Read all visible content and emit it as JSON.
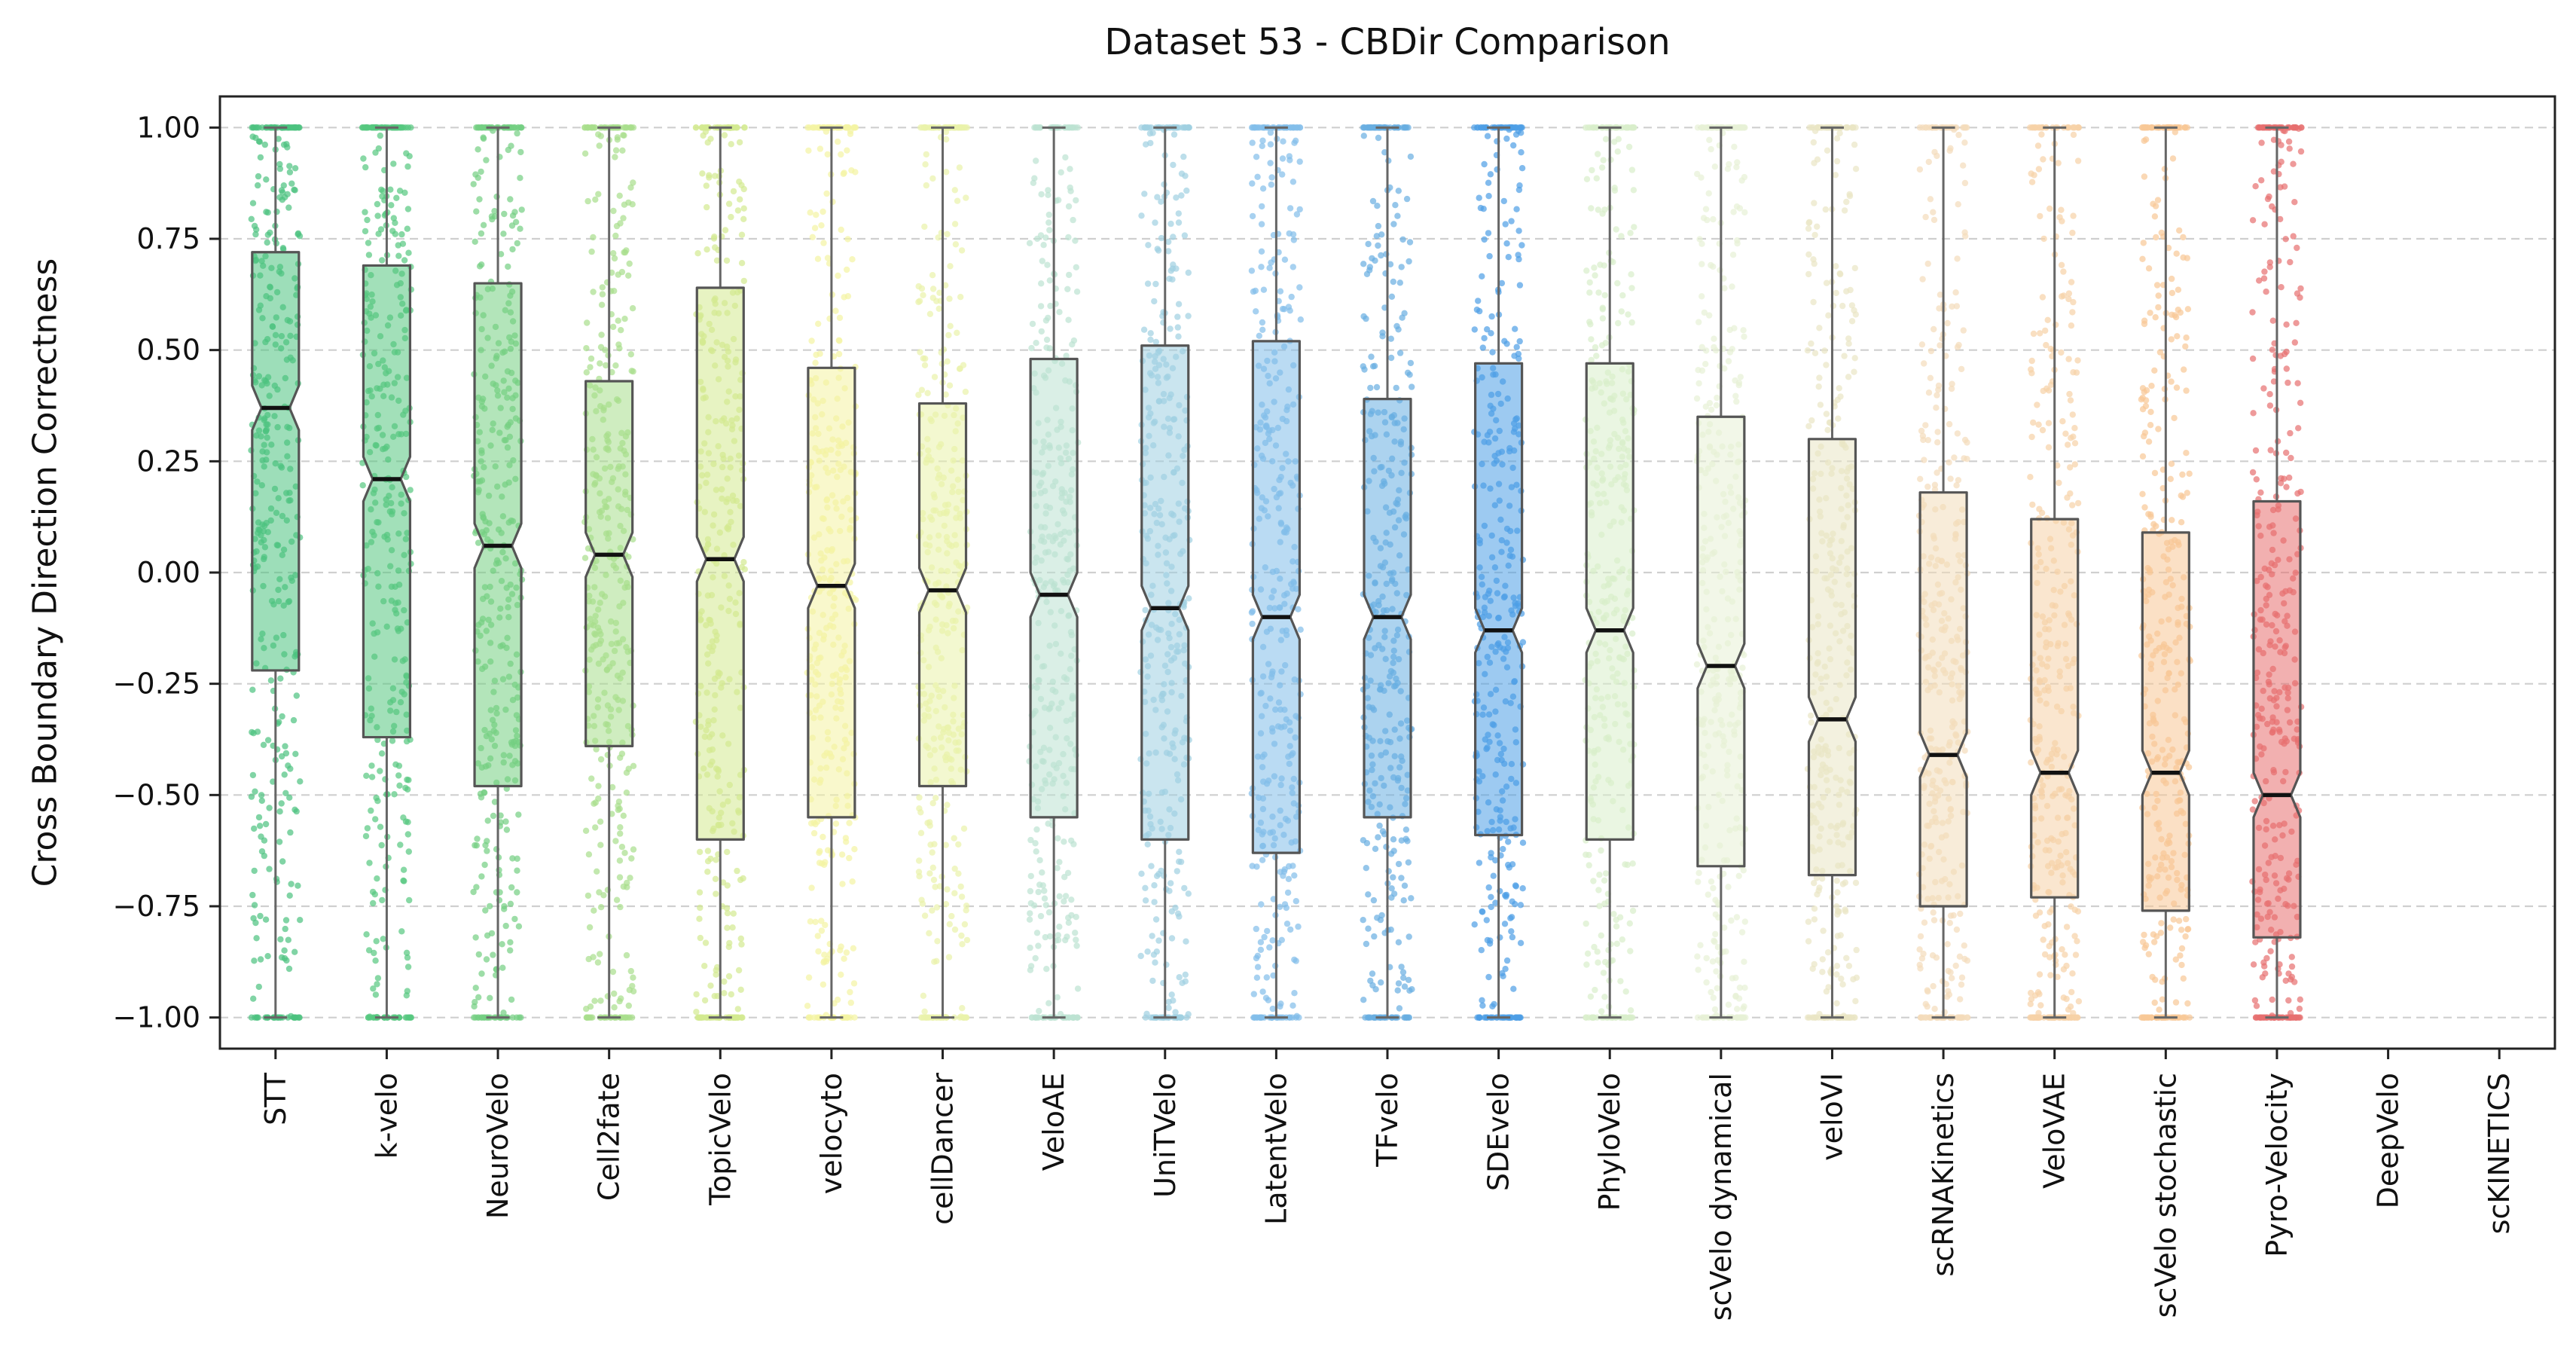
{
  "chart_data": {
    "type": "box",
    "overlay": "jittered-strip-points",
    "title": "Dataset 53 - CBDir Comparison",
    "ylabel": "Cross Boundary Direction Correctness",
    "xlabel": "",
    "ylim": [
      -1.07,
      1.07
    ],
    "yticks": [
      1.0,
      0.75,
      0.5,
      0.25,
      0.0,
      -0.25,
      -0.5,
      -0.75,
      -1.0
    ],
    "grid": "horizontal-dashed",
    "notched": true,
    "legend": "none",
    "series": [
      {
        "name": "STT",
        "color": "#4cc27f",
        "q1": -0.22,
        "median": 0.37,
        "q3": 0.72,
        "lo": -1.0,
        "hi": 1.0
      },
      {
        "name": "k-velo",
        "color": "#55c77f",
        "q1": -0.37,
        "median": 0.21,
        "q3": 0.69,
        "lo": -1.0,
        "hi": 1.0
      },
      {
        "name": "NeuroVelo",
        "color": "#74cf82",
        "q1": -0.48,
        "median": 0.06,
        "q3": 0.65,
        "lo": -1.0,
        "hi": 1.0
      },
      {
        "name": "Cell2fate",
        "color": "#a8de8c",
        "q1": -0.39,
        "median": 0.04,
        "q3": 0.43,
        "lo": -1.0,
        "hi": 1.0
      },
      {
        "name": "TopicVelo",
        "color": "#d3ea90",
        "q1": -0.6,
        "median": 0.03,
        "q3": 0.64,
        "lo": -1.0,
        "hi": 1.0
      },
      {
        "name": "velocyto",
        "color": "#f4f3a2",
        "q1": -0.55,
        "median": -0.03,
        "q3": 0.46,
        "lo": -1.0,
        "hi": 1.0
      },
      {
        "name": "cellDancer",
        "color": "#e9f2a9",
        "q1": -0.48,
        "median": -0.04,
        "q3": 0.38,
        "lo": -1.0,
        "hi": 1.0
      },
      {
        "name": "VeloAE",
        "color": "#bce2d2",
        "q1": -0.55,
        "median": -0.05,
        "q3": 0.48,
        "lo": -1.0,
        "hi": 1.0
      },
      {
        "name": "UniTVelo",
        "color": "#9fd0e1",
        "q1": -0.6,
        "median": -0.08,
        "q3": 0.51,
        "lo": -1.0,
        "hi": 1.0
      },
      {
        "name": "LatentVelo",
        "color": "#82bde9",
        "q1": -0.63,
        "median": -0.1,
        "q3": 0.52,
        "lo": -1.0,
        "hi": 1.0
      },
      {
        "name": "TFvelo",
        "color": "#68aee1",
        "q1": -0.55,
        "median": -0.1,
        "q3": 0.39,
        "lo": -1.0,
        "hi": 1.0
      },
      {
        "name": "SDEvelo",
        "color": "#4d9ee5",
        "q1": -0.59,
        "median": -0.13,
        "q3": 0.47,
        "lo": -1.0,
        "hi": 1.0
      },
      {
        "name": "PhyloVelo",
        "color": "#d8eeca",
        "q1": -0.6,
        "median": -0.13,
        "q3": 0.47,
        "lo": -1.0,
        "hi": 1.0
      },
      {
        "name": "scVelo dynamical",
        "color": "#e7f1d6",
        "q1": -0.66,
        "median": -0.21,
        "q3": 0.35,
        "lo": -1.0,
        "hi": 1.0
      },
      {
        "name": "veloVI",
        "color": "#e9e5c4",
        "q1": -0.68,
        "median": -0.33,
        "q3": 0.3,
        "lo": -1.0,
        "hi": 1.0
      },
      {
        "name": "scRNAKinetics",
        "color": "#f3dcba",
        "q1": -0.75,
        "median": -0.41,
        "q3": 0.18,
        "lo": -1.0,
        "hi": 1.0
      },
      {
        "name": "VeloVAE",
        "color": "#f6d2a7",
        "q1": -0.73,
        "median": -0.45,
        "q3": 0.12,
        "lo": -1.0,
        "hi": 1.0
      },
      {
        "name": "scVelo stochastic",
        "color": "#f8c795",
        "q1": -0.76,
        "median": -0.45,
        "q3": 0.09,
        "lo": -1.0,
        "hi": 1.0
      },
      {
        "name": "Pyro-Velocity",
        "color": "#e76f6f",
        "q1": -0.82,
        "median": -0.5,
        "q3": 0.16,
        "lo": -1.0,
        "hi": 1.0
      },
      {
        "name": "DeepVelo",
        "color": "#cccccc",
        "empty": true
      },
      {
        "name": "scKINETICS",
        "color": "#cccccc",
        "empty": true
      }
    ]
  }
}
